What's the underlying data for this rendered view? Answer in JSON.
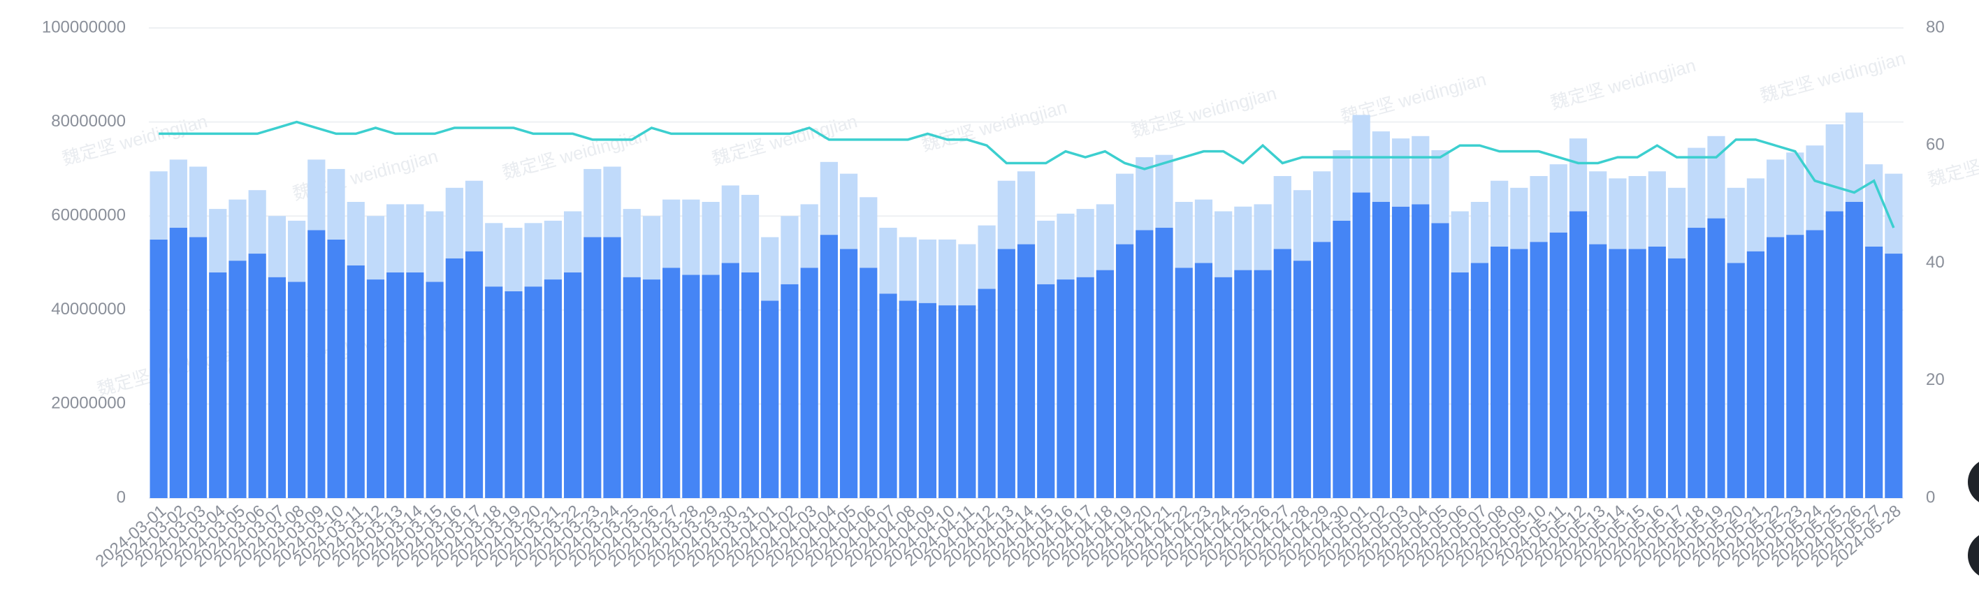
{
  "chart_data": {
    "type": "bar",
    "stacked": true,
    "watermark": "魏定坚 weidingjian",
    "categories": [
      "2024-03-01",
      "2024-03-02",
      "2024-03-03",
      "2024-03-04",
      "2024-03-05",
      "2024-03-06",
      "2024-03-07",
      "2024-03-08",
      "2024-03-09",
      "2024-03-10",
      "2024-03-11",
      "2024-03-12",
      "2024-03-13",
      "2024-03-14",
      "2024-03-15",
      "2024-03-16",
      "2024-03-17",
      "2024-03-18",
      "2024-03-19",
      "2024-03-20",
      "2024-03-21",
      "2024-03-22",
      "2024-03-23",
      "2024-03-24",
      "2024-03-25",
      "2024-03-26",
      "2024-03-27",
      "2024-03-28",
      "2024-03-29",
      "2024-03-30",
      "2024-03-31",
      "2024-04-01",
      "2024-04-02",
      "2024-04-03",
      "2024-04-04",
      "2024-04-05",
      "2024-04-06",
      "2024-04-07",
      "2024-04-08",
      "2024-04-09",
      "2024-04-10",
      "2024-04-11",
      "2024-04-12",
      "2024-04-13",
      "2024-04-14",
      "2024-04-15",
      "2024-04-16",
      "2024-04-17",
      "2024-04-18",
      "2024-04-19",
      "2024-04-20",
      "2024-04-21",
      "2024-04-22",
      "2024-04-23",
      "2024-04-24",
      "2024-04-25",
      "2024-04-26",
      "2024-04-27",
      "2024-04-28",
      "2024-04-29",
      "2024-04-30",
      "2024-05-01",
      "2024-05-02",
      "2024-05-03",
      "2024-05-04",
      "2024-05-05",
      "2024-05-06",
      "2024-05-07",
      "2024-05-08",
      "2024-05-09",
      "2024-05-10",
      "2024-05-11",
      "2024-05-12",
      "2024-05-13",
      "2024-05-14",
      "2024-05-15",
      "2024-05-16",
      "2024-05-17",
      "2024-05-18",
      "2024-05-19",
      "2024-05-20",
      "2024-05-21",
      "2024-05-22",
      "2024-05-23",
      "2024-05-24",
      "2024-05-25",
      "2024-05-26",
      "2024-05-27",
      "2024-05-28"
    ],
    "series": [
      {
        "color": "#4585f5",
        "values": [
          55000000,
          57500000,
          55500000,
          48000000,
          50500000,
          52000000,
          47000000,
          46000000,
          57000000,
          55000000,
          49500000,
          46500000,
          48000000,
          48000000,
          46000000,
          51000000,
          52500000,
          45000000,
          44000000,
          45000000,
          46500000,
          48000000,
          55500000,
          55500000,
          47000000,
          46500000,
          49000000,
          47500000,
          47500000,
          50000000,
          48000000,
          42000000,
          45500000,
          49000000,
          56000000,
          53000000,
          49000000,
          43500000,
          42000000,
          41500000,
          41000000,
          41000000,
          44500000,
          53000000,
          54000000,
          45500000,
          46500000,
          47000000,
          48500000,
          54000000,
          57000000,
          57500000,
          49000000,
          50000000,
          47000000,
          48500000,
          48500000,
          53000000,
          50500000,
          54500000,
          59000000,
          65000000,
          63000000,
          62000000,
          62500000,
          58500000,
          48000000,
          50000000,
          53500000,
          53000000,
          54500000,
          56500000,
          61000000,
          54000000,
          53000000,
          53000000,
          53500000,
          51000000,
          57500000,
          59500000,
          50000000,
          52500000,
          55500000,
          56000000,
          57000000,
          61000000,
          63000000,
          53500000,
          52000000
        ]
      },
      {
        "color": "#c0dafa",
        "values": [
          14500000,
          14500000,
          15000000,
          13500000,
          13000000,
          13500000,
          13000000,
          13000000,
          15000000,
          15000000,
          13500000,
          13500000,
          14500000,
          14500000,
          15000000,
          15000000,
          15000000,
          13500000,
          13500000,
          13500000,
          12500000,
          13000000,
          14500000,
          15000000,
          14500000,
          13500000,
          14500000,
          16000000,
          15500000,
          16500000,
          16500000,
          13500000,
          14500000,
          13500000,
          15500000,
          16000000,
          15000000,
          14000000,
          13500000,
          13500000,
          14000000,
          13000000,
          13500000,
          14500000,
          15500000,
          13500000,
          14000000,
          14500000,
          14000000,
          15000000,
          15500000,
          15500000,
          14000000,
          13500000,
          14000000,
          13500000,
          14000000,
          15500000,
          15000000,
          15000000,
          15000000,
          16500000,
          15000000,
          14500000,
          14500000,
          15500000,
          13000000,
          13000000,
          14000000,
          13000000,
          14000000,
          14500000,
          15500000,
          15500000,
          15000000,
          15500000,
          16000000,
          15000000,
          17000000,
          17500000,
          16000000,
          15500000,
          16500000,
          17500000,
          18000000,
          18500000,
          19000000,
          17500000,
          17000000
        ]
      },
      {
        "type": "line",
        "axis": "y2",
        "color": "#3ccfcf",
        "values": [
          62,
          62,
          62,
          62,
          62,
          62,
          63,
          64,
          63,
          62,
          62,
          63,
          62,
          62,
          62,
          63,
          63,
          63,
          63,
          62,
          62,
          62,
          61,
          61,
          61,
          63,
          62,
          62,
          62,
          62,
          62,
          62,
          62,
          63,
          61,
          61,
          61,
          61,
          61,
          62,
          61,
          61,
          60,
          57,
          57,
          57,
          59,
          58,
          59,
          57,
          56,
          57,
          58,
          59,
          59,
          57,
          60,
          57,
          58,
          58,
          58,
          58,
          58,
          58,
          58,
          58,
          60,
          60,
          59,
          59,
          59,
          58,
          57,
          57,
          58,
          58,
          60,
          58,
          58,
          58,
          61,
          61,
          60,
          59,
          54,
          53,
          52,
          54,
          46
        ]
      }
    ],
    "ylim": [
      0,
      100000000
    ],
    "yticks": [
      0,
      20000000,
      40000000,
      60000000,
      80000000,
      100000000
    ],
    "y2lim": [
      0,
      80
    ],
    "y2ticks": [
      0,
      20,
      40,
      60,
      80
    ],
    "grid": true
  }
}
